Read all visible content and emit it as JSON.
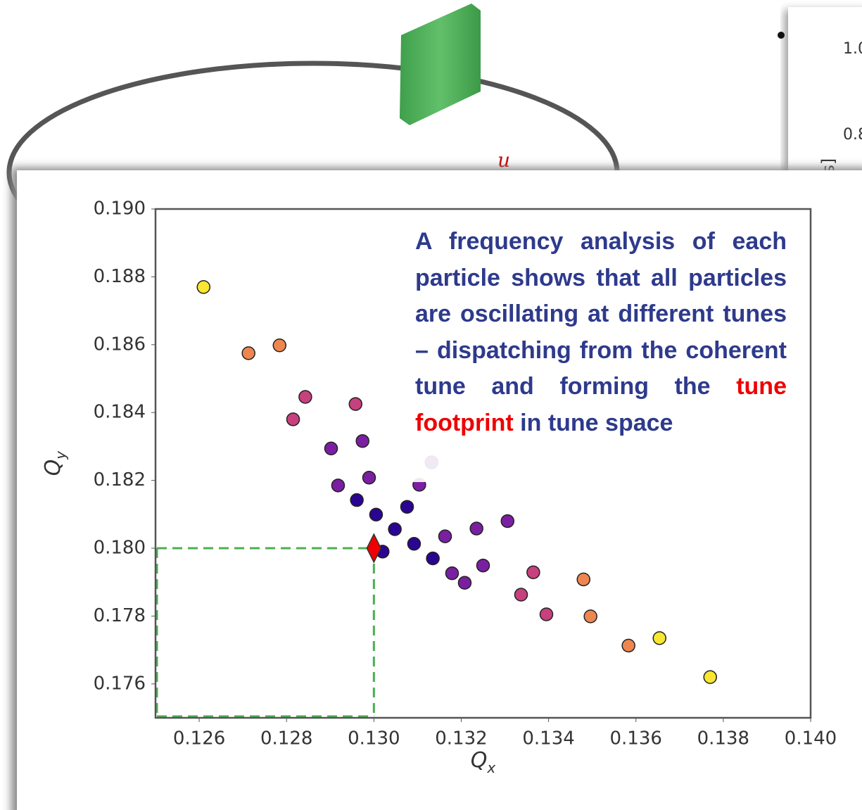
{
  "background": {
    "ring_label": "u",
    "side_ticks": [
      "1.0",
      "0.8"
    ],
    "side_axis_label": "ts]"
  },
  "chart_data": {
    "type": "scatter",
    "annotation": [
      "A frequency analysis of each particle shows that all particles are oscillating at different tunes – dispatching from the coherent tune and forming the ",
      "tune footprint",
      " in tune space"
    ],
    "xlabel": {
      "main": "Q",
      "sub": "x"
    },
    "ylabel": {
      "main": "Q",
      "sub": "y"
    },
    "xlim": [
      0.125,
      0.14
    ],
    "ylim": [
      0.175,
      0.19
    ],
    "xticks": [
      0.126,
      0.128,
      {
        "value": 0.13,
        "label": "0.130"
      },
      0.132,
      0.134,
      0.136,
      0.138,
      {
        "value": 0.14,
        "label": "0.140"
      }
    ],
    "yticks": [
      0.176,
      0.178,
      {
        "value": 0.18,
        "label": "0.180"
      },
      0.182,
      0.184,
      0.186,
      0.188,
      {
        "value": 0.19,
        "label": "0.190"
      }
    ],
    "colormap": [
      "#2a0593",
      "#7b1fa2",
      "#c6417d",
      "#ee8650",
      "#f8e630"
    ],
    "x": [
      0.1261,
      0.12713,
      0.12815,
      0.12918,
      0.12784,
      0.12843,
      0.12902,
      0.12961,
      0.12958,
      0.12974,
      0.12989,
      0.13005,
      0.13132,
      0.13104,
      0.13076,
      0.13048,
      0.13306,
      0.13235,
      0.13163,
      0.13092,
      0.1348,
      0.13365,
      0.1325,
      0.13135,
      0.13654,
      0.13496,
      0.13337,
      0.13179,
      0.1377,
      0.13583,
      0.13395,
      0.13208,
      0.1302
    ],
    "values": [
      0.1877,
      0.18575,
      0.1838,
      0.18185,
      0.18598,
      0.18446,
      0.18294,
      0.18142,
      0.18425,
      0.18316,
      0.18208,
      0.18099,
      0.18253,
      0.18187,
      0.18122,
      0.18056,
      0.1808,
      0.18058,
      0.18035,
      0.18013,
      0.17908,
      0.17929,
      0.17949,
      0.1797,
      0.17735,
      0.17799,
      0.17863,
      0.17926,
      0.1762,
      0.17713,
      0.17805,
      0.17898,
      0.1799
    ],
    "coherent_tune": {
      "x": 0.13,
      "y": 0.18,
      "color": "#ee0000",
      "line_color": "#4caf50"
    }
  }
}
